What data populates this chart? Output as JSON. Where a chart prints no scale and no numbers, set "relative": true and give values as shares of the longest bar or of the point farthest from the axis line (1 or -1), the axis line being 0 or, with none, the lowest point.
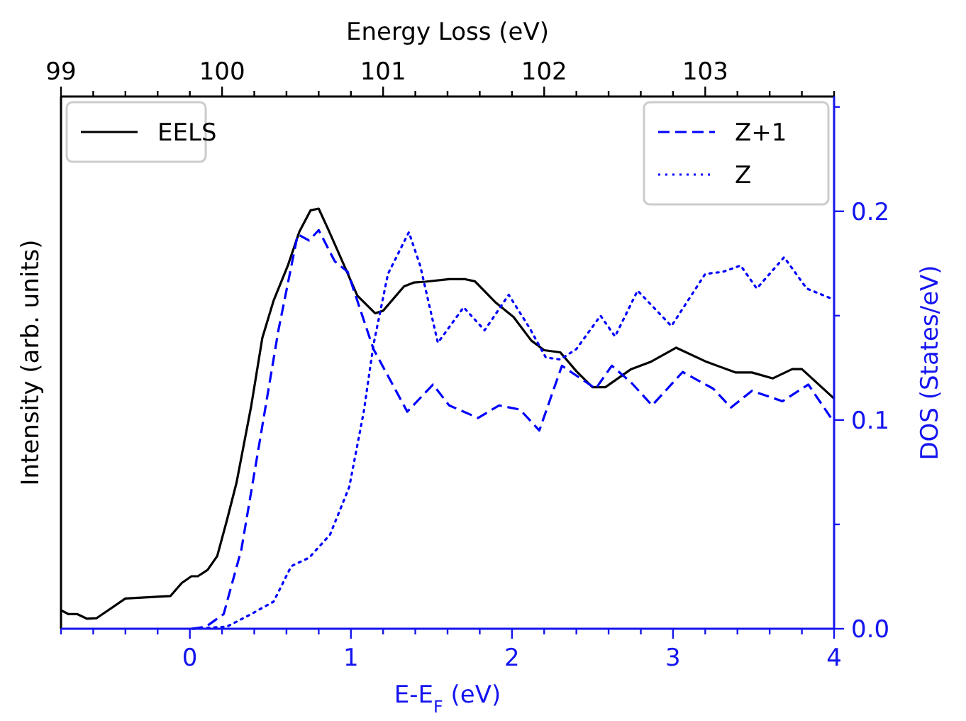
{
  "chart_data": {
    "type": "line",
    "xlabel": "E-E$_{F}$ (eV)",
    "ylabel": "Intensity (arb. units)",
    "y2label": "DOS (States/eV)",
    "x2label": "Energy Loss (eV)",
    "relative": true,
    "legend": "top",
    "xlim": [
      -0.8,
      4
    ],
    "xticks": [
      {
        "value": -0.8,
        "label": null
      },
      {
        "value": -0.6,
        "label": null
      },
      {
        "value": -0.4,
        "label": null
      },
      {
        "value": -0.2,
        "label": null
      },
      0,
      {
        "value": 0.2,
        "label": null
      },
      {
        "value": 0.4,
        "label": null
      },
      {
        "value": 0.6,
        "label": null
      },
      {
        "value": 0.8,
        "label": null
      },
      1,
      {
        "value": 1.2,
        "label": null
      },
      {
        "value": 1.4,
        "label": null
      },
      {
        "value": 1.6,
        "label": null
      },
      {
        "value": 1.8,
        "label": null
      },
      2,
      {
        "value": 2.2,
        "label": null
      },
      {
        "value": 2.4,
        "label": null
      },
      {
        "value": 2.6,
        "label": null
      },
      {
        "value": 2.8,
        "label": null
      },
      3,
      {
        "value": 3.2,
        "label": null
      },
      {
        "value": 3.4,
        "label": null
      },
      {
        "value": 3.6,
        "label": null
      },
      {
        "value": 3.8,
        "label": null
      },
      4
    ],
    "x2lim": [
      99,
      103.8
    ],
    "x2ticks": [
      99,
      {
        "value": 99.2,
        "label": null
      },
      {
        "value": 99.4,
        "label": null
      },
      {
        "value": 99.6,
        "label": null
      },
      {
        "value": 99.8,
        "label": null
      },
      100,
      {
        "value": 100.2,
        "label": null
      },
      {
        "value": 100.4,
        "label": null
      },
      {
        "value": 100.6,
        "label": null
      },
      {
        "value": 100.8,
        "label": null
      },
      101,
      {
        "value": 101.2,
        "label": null
      },
      {
        "value": 101.4,
        "label": null
      },
      {
        "value": 101.6,
        "label": null
      },
      {
        "value": 101.8,
        "label": null
      },
      102,
      {
        "value": 102.2,
        "label": null
      },
      {
        "value": 102.4,
        "label": null
      },
      {
        "value": 102.6,
        "label": null
      },
      {
        "value": 102.8,
        "label": null
      },
      103,
      {
        "value": 103.2,
        "label": null
      },
      {
        "value": 103.4,
        "label": null
      },
      {
        "value": 103.6,
        "label": null
      },
      {
        "value": 103.8,
        "label": null
      }
    ],
    "y2lim": [
      0,
      0.255
    ],
    "y2ticks": [
      {
        "value": 0,
        "label": "0.0"
      },
      {
        "value": 0.05,
        "label": null
      },
      0.1,
      {
        "value": 0.15,
        "label": null
      },
      0.2,
      {
        "value": 0.25,
        "label": null
      }
    ],
    "series": [
      {
        "name": "EELS",
        "color": "#000000",
        "line_style": "solid",
        "x": [
          -0.8,
          -0.755,
          -0.7,
          -0.64,
          -0.58,
          -0.4,
          -0.12,
          -0.05,
          0.01,
          0.05,
          0.11,
          0.17,
          0.23,
          0.29,
          0.38,
          0.45,
          0.52,
          0.61,
          0.68,
          0.75,
          0.8,
          0.86,
          0.95,
          1.04,
          1.15,
          1.2,
          1.33,
          1.39,
          1.46,
          1.61,
          1.71,
          1.77,
          1.9,
          2.01,
          2.12,
          2.2,
          2.3,
          2.4,
          2.5,
          2.58,
          2.74,
          2.86,
          3.02,
          3.21,
          3.39,
          3.49,
          3.62,
          3.74,
          3.8,
          4.0
        ],
        "values": [
          0.044,
          0.035,
          0.035,
          0.024,
          0.025,
          0.072,
          0.078,
          0.109,
          0.125,
          0.125,
          0.14,
          0.173,
          0.258,
          0.348,
          0.528,
          0.692,
          0.781,
          0.866,
          0.945,
          0.996,
          1.0,
          0.95,
          0.872,
          0.793,
          0.751,
          0.757,
          0.815,
          0.824,
          0.826,
          0.832,
          0.832,
          0.827,
          0.776,
          0.742,
          0.686,
          0.663,
          0.658,
          0.613,
          0.575,
          0.575,
          0.618,
          0.635,
          0.669,
          0.635,
          0.61,
          0.61,
          0.596,
          0.618,
          0.618,
          0.548
        ]
      },
      {
        "name": "Z+1",
        "color": "#0000ff",
        "line_style": "dashed",
        "axis": "y2",
        "x": [
          0.01,
          0.1,
          0.21,
          0.32,
          0.43,
          0.55,
          0.67,
          0.74,
          0.8,
          0.9,
          0.98,
          1.14,
          1.35,
          1.51,
          1.61,
          1.79,
          1.92,
          2.05,
          2.17,
          2.31,
          2.52,
          2.62,
          2.74,
          2.87,
          3.06,
          3.25,
          3.36,
          3.49,
          3.68,
          3.84,
          3.99
        ],
        "values": [
          0.0,
          0.001,
          0.007,
          0.038,
          0.088,
          0.143,
          0.189,
          0.186,
          0.191,
          0.176,
          0.171,
          0.134,
          0.104,
          0.117,
          0.107,
          0.101,
          0.107,
          0.105,
          0.095,
          0.126,
          0.115,
          0.126,
          0.118,
          0.107,
          0.123,
          0.115,
          0.106,
          0.114,
          0.109,
          0.117,
          0.1
        ]
      },
      {
        "name": "Z",
        "color": "#0000ff",
        "line_style": "dotted",
        "axis": "y2",
        "x": [
          0.02,
          0.23,
          0.38,
          0.52,
          0.63,
          0.74,
          0.87,
          0.99,
          1.08,
          1.14,
          1.23,
          1.36,
          1.43,
          1.54,
          1.7,
          1.83,
          1.98,
          2.11,
          2.21,
          2.3,
          2.4,
          2.55,
          2.64,
          2.78,
          2.99,
          3.2,
          3.31,
          3.42,
          3.52,
          3.69,
          3.83,
          3.99
        ],
        "values": [
          0.0,
          0.001,
          0.007,
          0.013,
          0.03,
          0.034,
          0.045,
          0.068,
          0.104,
          0.136,
          0.17,
          0.19,
          0.174,
          0.137,
          0.154,
          0.143,
          0.16,
          0.144,
          0.13,
          0.129,
          0.134,
          0.15,
          0.14,
          0.162,
          0.145,
          0.17,
          0.171,
          0.174,
          0.163,
          0.178,
          0.163,
          0.158
        ]
      }
    ]
  }
}
